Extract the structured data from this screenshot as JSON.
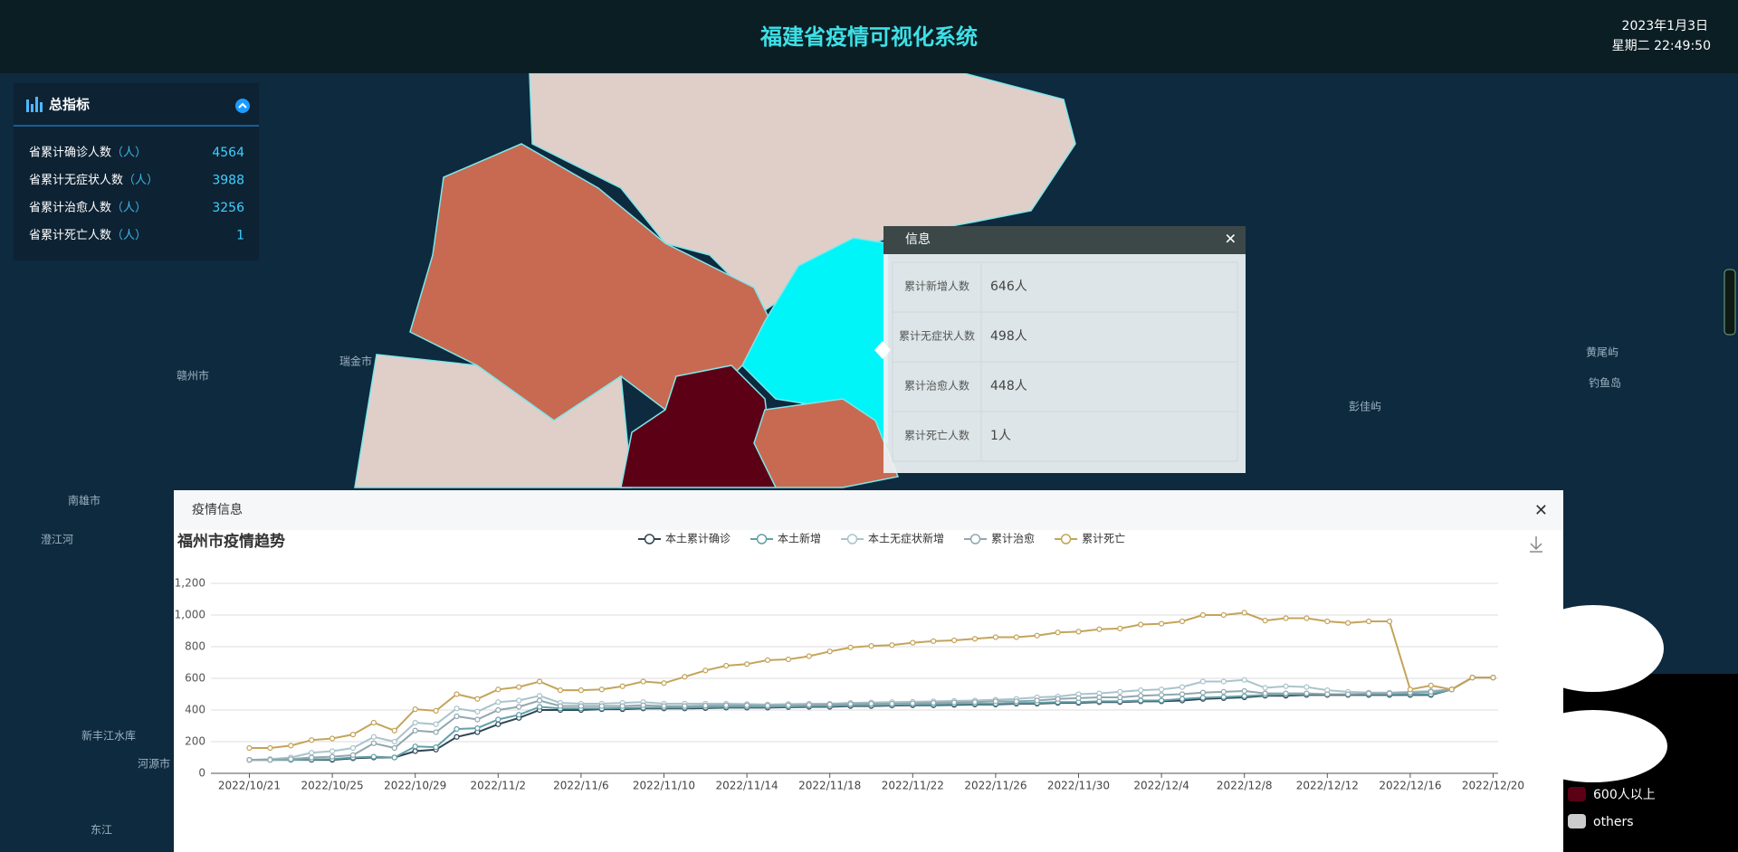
{
  "header": {
    "title": "福建省疫情可视化系统",
    "date": "2023年1月3日",
    "time": "星期二 22:49:50"
  },
  "summary": {
    "title": "总指标",
    "unit": "（人）",
    "rows": [
      {
        "label": "省累计确诊人数",
        "value": 4564
      },
      {
        "label": "省累计无症状人数",
        "value": 3988
      },
      {
        "label": "省累计治愈人数",
        "value": 3256
      },
      {
        "label": "省累计死亡人数",
        "value": 1
      }
    ]
  },
  "map_labels": [
    "瑞金市",
    "赣州市",
    "南雄市",
    "澄江河",
    "新丰江水库",
    "河源市",
    "东江",
    "彭佳屿",
    "钓鱼岛",
    "黄尾屿"
  ],
  "info_popup": {
    "title": "信息",
    "rows": [
      {
        "label": "累计新增人数",
        "value": "646人"
      },
      {
        "label": "累计无症状人数",
        "value": "498人"
      },
      {
        "label": "累计治愈人数",
        "value": "448人"
      },
      {
        "label": "累计死亡人数",
        "value": "1人"
      }
    ]
  },
  "chart_panel": {
    "title": "疫情信息"
  },
  "map_legend": [
    "600人以上",
    "others"
  ],
  "chart_data": {
    "type": "line",
    "title": "福州市疫情趋势",
    "categories": [
      "2022/10/21",
      null,
      null,
      null,
      "2022/10/25",
      null,
      null,
      null,
      "2022/10/29",
      null,
      null,
      null,
      "2022/11/2",
      null,
      null,
      null,
      "2022/11/6",
      null,
      null,
      null,
      "2022/11/10",
      null,
      null,
      null,
      "2022/11/14",
      null,
      null,
      null,
      "2022/11/18",
      null,
      null,
      null,
      "2022/11/22",
      null,
      null,
      null,
      "2022/11/26",
      null,
      null,
      null,
      "2022/11/30",
      null,
      null,
      null,
      "2022/12/4",
      null,
      null,
      null,
      "2022/12/8",
      null,
      null,
      null,
      "2022/12/12",
      null,
      null,
      null,
      "2022/12/16",
      null,
      null,
      null,
      "2022/12/20"
    ],
    "series": [
      {
        "name": "本土累计确诊",
        "color": "#2f4554",
        "values": [
          85,
          85,
          85,
          85,
          85,
          95,
          100,
          100,
          140,
          150,
          230,
          260,
          310,
          350,
          400,
          400,
          400,
          405,
          405,
          410,
          410,
          410,
          412,
          415,
          415,
          415,
          418,
          420,
          420,
          425,
          425,
          428,
          430,
          430,
          432,
          435,
          435,
          440,
          440,
          445,
          445,
          450,
          450,
          455,
          455,
          460,
          470,
          475,
          480,
          490,
          490,
          495,
          495,
          495,
          495,
          495,
          495,
          495,
          530,
          605,
          605
        ]
      },
      {
        "name": "本土新增",
        "color": "#61a0a8",
        "values": [
          85,
          85,
          85,
          88,
          90,
          100,
          105,
          100,
          170,
          165,
          280,
          285,
          340,
          370,
          420,
          410,
          410,
          410,
          412,
          415,
          415,
          415,
          418,
          420,
          420,
          420,
          422,
          425,
          425,
          430,
          430,
          432,
          435,
          435,
          438,
          440,
          440,
          445,
          445,
          450,
          450,
          455,
          455,
          460,
          460,
          470,
          478,
          482,
          488,
          495,
          498,
          500,
          500,
          500,
          500,
          500,
          500,
          500,
          530,
          605,
          605
        ]
      },
      {
        "name": "本土无症状新增",
        "color": "#a9c4cc",
        "values": [
          85,
          90,
          100,
          130,
          140,
          160,
          230,
          200,
          320,
          310,
          410,
          390,
          450,
          460,
          490,
          445,
          440,
          440,
          445,
          450,
          440,
          440,
          440,
          440,
          438,
          435,
          438,
          440,
          440,
          445,
          448,
          450,
          452,
          455,
          458,
          460,
          465,
          470,
          480,
          485,
          500,
          505,
          515,
          525,
          530,
          545,
          580,
          580,
          590,
          540,
          550,
          545,
          525,
          515,
          510,
          510,
          515,
          520,
          530,
          605,
          605
        ]
      },
      {
        "name": "累计治愈",
        "color": "#91a7ae",
        "values": [
          85,
          85,
          90,
          100,
          105,
          115,
          190,
          160,
          270,
          260,
          360,
          340,
          400,
          420,
          460,
          425,
          425,
          425,
          425,
          430,
          425,
          425,
          428,
          430,
          430,
          428,
          430,
          432,
          435,
          438,
          440,
          440,
          442,
          445,
          448,
          450,
          455,
          455,
          460,
          470,
          475,
          480,
          480,
          490,
          495,
          500,
          510,
          515,
          520,
          505,
          505,
          505,
          500,
          500,
          505,
          505,
          510,
          515,
          530,
          605,
          605
        ]
      },
      {
        "name": "累计死亡",
        "color": "#c4a45a",
        "values": [
          160,
          160,
          175,
          210,
          220,
          245,
          320,
          270,
          405,
          395,
          500,
          470,
          530,
          545,
          580,
          525,
          525,
          530,
          550,
          580,
          570,
          610,
          650,
          680,
          690,
          715,
          720,
          740,
          770,
          795,
          805,
          810,
          825,
          835,
          840,
          850,
          860,
          860,
          870,
          890,
          895,
          910,
          915,
          940,
          945,
          960,
          1000,
          1000,
          1015,
          965,
          980,
          980,
          960,
          950,
          960,
          960,
          530,
          555,
          530,
          605,
          605
        ]
      }
    ],
    "ylim": [
      0,
      1200
    ],
    "yticks": [
      0,
      200,
      400,
      600,
      800,
      {
        "value": 1000,
        "label": "1,000"
      },
      {
        "value": 1200,
        "label": "1,200"
      }
    ],
    "grid": true
  }
}
